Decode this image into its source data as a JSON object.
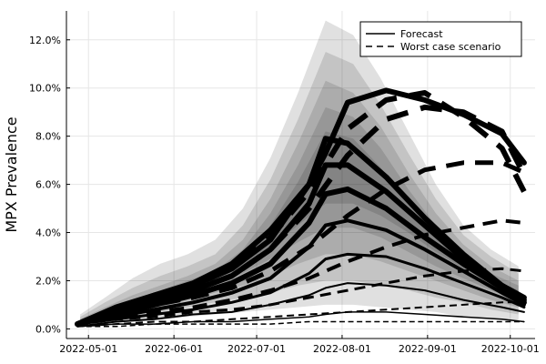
{
  "chart_data": {
    "type": "line",
    "title": "",
    "xlabel": "",
    "ylabel": "MPX Prevalence",
    "x_type": "date",
    "xlim": [
      "2022-04-23",
      "2022-10-10"
    ],
    "ylim": [
      -0.004,
      0.132
    ],
    "x_ticks": [
      "2022-05-01",
      "2022-06-01",
      "2022-07-01",
      "2022-08-01",
      "2022-09-01",
      "2022-10-01"
    ],
    "y_ticks": [
      0.0,
      0.02,
      0.04,
      0.06,
      0.08,
      0.1,
      0.12
    ],
    "y_tick_labels": [
      "0.0%",
      "2.0%",
      "4.0%",
      "6.0%",
      "8.0%",
      "10.0%",
      "12.0%"
    ],
    "grid": true,
    "legend": {
      "position": "top-right",
      "entries": [
        {
          "label": "Forecast",
          "style": "solid"
        },
        {
          "label": "Worst case scenario",
          "style": "dashed"
        }
      ]
    },
    "colors": {
      "line": "#000000",
      "band_fill": "#000000",
      "grid": "#e6e6e6",
      "axis": "#000000"
    },
    "uncertainty_bands": {
      "x": [
        "2022-04-28",
        "2022-05-07",
        "2022-05-17",
        "2022-05-27",
        "2022-06-06",
        "2022-06-16",
        "2022-06-26",
        "2022-07-06",
        "2022-07-16",
        "2022-07-26",
        "2022-08-05",
        "2022-08-15",
        "2022-08-25",
        "2022-09-04",
        "2022-09-14",
        "2022-09-24",
        "2022-10-04"
      ],
      "bands": [
        {
          "opacity": 0.12,
          "lower": [
            0.001,
            0.002,
            0.003,
            0.004,
            0.005,
            0.006,
            0.007,
            0.008,
            0.009,
            0.01,
            0.01,
            0.009,
            0.008,
            0.007,
            0.005,
            0.004,
            0.003
          ],
          "upper": [
            0.006,
            0.013,
            0.021,
            0.027,
            0.031,
            0.037,
            0.05,
            0.071,
            0.098,
            0.128,
            0.122,
            0.104,
            0.082,
            0.06,
            0.043,
            0.033,
            0.026
          ]
        },
        {
          "opacity": 0.12,
          "lower": [
            0.001,
            0.003,
            0.005,
            0.007,
            0.009,
            0.011,
            0.013,
            0.015,
            0.018,
            0.02,
            0.02,
            0.018,
            0.016,
            0.013,
            0.011,
            0.008,
            0.006
          ],
          "upper": [
            0.005,
            0.011,
            0.017,
            0.022,
            0.026,
            0.031,
            0.043,
            0.062,
            0.087,
            0.115,
            0.11,
            0.093,
            0.073,
            0.054,
            0.039,
            0.03,
            0.023
          ]
        },
        {
          "opacity": 0.12,
          "lower": [
            0.002,
            0.004,
            0.007,
            0.009,
            0.012,
            0.015,
            0.018,
            0.022,
            0.027,
            0.031,
            0.031,
            0.028,
            0.024,
            0.02,
            0.016,
            0.012,
            0.009
          ],
          "upper": [
            0.004,
            0.009,
            0.014,
            0.018,
            0.022,
            0.027,
            0.037,
            0.054,
            0.077,
            0.103,
            0.098,
            0.084,
            0.065,
            0.048,
            0.035,
            0.026,
            0.02
          ]
        },
        {
          "opacity": 0.12,
          "lower": [
            0.002,
            0.005,
            0.008,
            0.011,
            0.014,
            0.018,
            0.023,
            0.029,
            0.036,
            0.042,
            0.042,
            0.038,
            0.032,
            0.026,
            0.021,
            0.016,
            0.012
          ],
          "upper": [
            0.004,
            0.008,
            0.012,
            0.016,
            0.02,
            0.024,
            0.033,
            0.048,
            0.068,
            0.092,
            0.088,
            0.075,
            0.058,
            0.043,
            0.031,
            0.023,
            0.018
          ]
        },
        {
          "opacity": 0.12,
          "lower": [
            0.002,
            0.006,
            0.009,
            0.012,
            0.015,
            0.02,
            0.026,
            0.034,
            0.043,
            0.052,
            0.052,
            0.047,
            0.04,
            0.032,
            0.025,
            0.019,
            0.014
          ],
          "upper": [
            0.003,
            0.007,
            0.011,
            0.014,
            0.018,
            0.022,
            0.03,
            0.043,
            0.061,
            0.082,
            0.079,
            0.067,
            0.052,
            0.038,
            0.028,
            0.021,
            0.016
          ]
        }
      ]
    },
    "series": [
      {
        "name": "Forecast",
        "style": "solid",
        "width": 6,
        "x": [
          "2022-04-27",
          "2022-05-11",
          "2022-05-25",
          "2022-06-08",
          "2022-06-22",
          "2022-07-06",
          "2022-07-20",
          "2022-07-26",
          "2022-08-03",
          "2022-08-17",
          "2022-08-31",
          "2022-09-14",
          "2022-09-28",
          "2022-10-06"
        ],
        "values": [
          0.002,
          0.009,
          0.014,
          0.019,
          0.027,
          0.041,
          0.06,
          0.073,
          0.094,
          0.099,
          0.095,
          0.089,
          0.081,
          0.069
        ]
      },
      {
        "name": "Forecast",
        "style": "solid",
        "width": 6,
        "x": [
          "2022-04-27",
          "2022-05-11",
          "2022-05-25",
          "2022-06-08",
          "2022-06-22",
          "2022-07-06",
          "2022-07-20",
          "2022-07-26",
          "2022-08-03",
          "2022-08-17",
          "2022-08-31",
          "2022-09-14",
          "2022-09-28",
          "2022-10-06"
        ],
        "values": [
          0.002,
          0.008,
          0.014,
          0.018,
          0.025,
          0.037,
          0.06,
          0.079,
          0.077,
          0.063,
          0.046,
          0.031,
          0.018,
          0.013
        ]
      },
      {
        "name": "Forecast",
        "style": "solid",
        "width": 6,
        "x": [
          "2022-04-27",
          "2022-05-11",
          "2022-05-25",
          "2022-06-08",
          "2022-06-22",
          "2022-07-06",
          "2022-07-20",
          "2022-07-26",
          "2022-08-03",
          "2022-08-17",
          "2022-08-31",
          "2022-09-14",
          "2022-09-28",
          "2022-10-06"
        ],
        "values": [
          0.002,
          0.007,
          0.012,
          0.016,
          0.022,
          0.033,
          0.052,
          0.068,
          0.068,
          0.057,
          0.043,
          0.029,
          0.018,
          0.012
        ]
      },
      {
        "name": "Forecast",
        "style": "solid",
        "width": 6,
        "x": [
          "2022-04-27",
          "2022-05-11",
          "2022-05-25",
          "2022-06-08",
          "2022-06-22",
          "2022-07-06",
          "2022-07-20",
          "2022-07-26",
          "2022-08-03",
          "2022-08-17",
          "2022-08-31",
          "2022-09-14",
          "2022-09-28",
          "2022-10-06"
        ],
        "values": [
          0.002,
          0.006,
          0.01,
          0.014,
          0.019,
          0.027,
          0.044,
          0.056,
          0.058,
          0.05,
          0.038,
          0.027,
          0.017,
          0.011
        ]
      },
      {
        "name": "Forecast",
        "style": "solid",
        "width": 4,
        "x": [
          "2022-04-27",
          "2022-05-11",
          "2022-05-25",
          "2022-06-08",
          "2022-06-22",
          "2022-07-06",
          "2022-07-20",
          "2022-07-26",
          "2022-08-03",
          "2022-08-17",
          "2022-08-31",
          "2022-09-14",
          "2022-09-28",
          "2022-10-06"
        ],
        "values": [
          0.002,
          0.005,
          0.008,
          0.011,
          0.015,
          0.021,
          0.034,
          0.043,
          0.045,
          0.041,
          0.033,
          0.024,
          0.015,
          0.01
        ]
      },
      {
        "name": "Forecast",
        "style": "solid",
        "width": 3,
        "x": [
          "2022-04-27",
          "2022-05-11",
          "2022-05-25",
          "2022-06-08",
          "2022-06-22",
          "2022-07-06",
          "2022-07-20",
          "2022-07-26",
          "2022-08-03",
          "2022-08-17",
          "2022-08-31",
          "2022-09-14",
          "2022-09-28",
          "2022-10-06"
        ],
        "values": [
          0.002,
          0.004,
          0.006,
          0.008,
          0.011,
          0.015,
          0.023,
          0.029,
          0.031,
          0.03,
          0.025,
          0.019,
          0.013,
          0.009
        ]
      },
      {
        "name": "Forecast",
        "style": "solid",
        "width": 2,
        "x": [
          "2022-04-27",
          "2022-05-11",
          "2022-05-25",
          "2022-06-08",
          "2022-06-22",
          "2022-07-06",
          "2022-07-20",
          "2022-07-26",
          "2022-08-03",
          "2022-08-17",
          "2022-08-31",
          "2022-09-14",
          "2022-09-28",
          "2022-10-06"
        ],
        "values": [
          0.001,
          0.003,
          0.004,
          0.006,
          0.007,
          0.01,
          0.014,
          0.017,
          0.019,
          0.018,
          0.016,
          0.012,
          0.009,
          0.007
        ]
      },
      {
        "name": "Forecast",
        "style": "solid",
        "width": 1.5,
        "x": [
          "2022-04-27",
          "2022-05-11",
          "2022-05-25",
          "2022-06-08",
          "2022-06-22",
          "2022-07-06",
          "2022-07-20",
          "2022-07-26",
          "2022-08-03",
          "2022-08-17",
          "2022-08-31",
          "2022-09-14",
          "2022-09-28",
          "2022-10-06"
        ],
        "values": [
          0.001,
          0.002,
          0.002,
          0.003,
          0.003,
          0.004,
          0.005,
          0.006,
          0.007,
          0.007,
          0.006,
          0.005,
          0.004,
          0.003
        ]
      },
      {
        "name": "Worst case scenario",
        "style": "dashed",
        "width": 6,
        "x": [
          "2022-04-27",
          "2022-05-11",
          "2022-05-25",
          "2022-06-08",
          "2022-06-22",
          "2022-07-06",
          "2022-07-20",
          "2022-08-03",
          "2022-08-17",
          "2022-08-31",
          "2022-09-14",
          "2022-09-28",
          "2022-10-06"
        ],
        "values": [
          0.002,
          0.008,
          0.013,
          0.018,
          0.025,
          0.038,
          0.057,
          0.083,
          0.095,
          0.098,
          0.088,
          0.075,
          0.057
        ]
      },
      {
        "name": "Worst case scenario",
        "style": "dashed",
        "width": 6,
        "x": [
          "2022-04-27",
          "2022-05-11",
          "2022-05-25",
          "2022-06-08",
          "2022-06-22",
          "2022-07-06",
          "2022-07-20",
          "2022-08-03",
          "2022-08-17",
          "2022-08-31",
          "2022-09-14",
          "2022-09-28",
          "2022-10-06"
        ],
        "values": [
          0.002,
          0.007,
          0.012,
          0.016,
          0.022,
          0.033,
          0.05,
          0.072,
          0.087,
          0.092,
          0.09,
          0.082,
          0.064
        ]
      },
      {
        "name": "Worst case scenario",
        "style": "dashed",
        "width": 5,
        "x": [
          "2022-04-27",
          "2022-05-11",
          "2022-05-25",
          "2022-06-08",
          "2022-06-22",
          "2022-07-06",
          "2022-07-20",
          "2022-08-03",
          "2022-08-17",
          "2022-08-31",
          "2022-09-14",
          "2022-09-28",
          "2022-10-06"
        ],
        "values": [
          0.002,
          0.006,
          0.01,
          0.013,
          0.017,
          0.024,
          0.034,
          0.047,
          0.058,
          0.066,
          0.069,
          0.069,
          0.065
        ]
      },
      {
        "name": "Worst case scenario",
        "style": "dashed",
        "width": 4,
        "x": [
          "2022-04-27",
          "2022-05-11",
          "2022-05-25",
          "2022-06-08",
          "2022-06-22",
          "2022-07-06",
          "2022-07-20",
          "2022-08-03",
          "2022-08-17",
          "2022-08-31",
          "2022-09-14",
          "2022-09-28",
          "2022-10-06"
        ],
        "values": [
          0.002,
          0.005,
          0.007,
          0.009,
          0.012,
          0.016,
          0.021,
          0.028,
          0.034,
          0.039,
          0.042,
          0.045,
          0.044
        ]
      },
      {
        "name": "Worst case scenario",
        "style": "dashed",
        "width": 3,
        "x": [
          "2022-04-27",
          "2022-05-11",
          "2022-05-25",
          "2022-06-08",
          "2022-06-22",
          "2022-07-06",
          "2022-07-20",
          "2022-08-03",
          "2022-08-17",
          "2022-08-31",
          "2022-09-14",
          "2022-09-28",
          "2022-10-06"
        ],
        "values": [
          0.002,
          0.004,
          0.005,
          0.007,
          0.008,
          0.01,
          0.013,
          0.016,
          0.019,
          0.022,
          0.024,
          0.025,
          0.024
        ]
      },
      {
        "name": "Worst case scenario",
        "style": "dashed",
        "width": 2,
        "x": [
          "2022-04-27",
          "2022-05-11",
          "2022-05-25",
          "2022-06-08",
          "2022-06-22",
          "2022-07-06",
          "2022-07-20",
          "2022-08-03",
          "2022-08-17",
          "2022-08-31",
          "2022-09-14",
          "2022-09-28",
          "2022-10-06"
        ],
        "values": [
          0.001,
          0.002,
          0.003,
          0.003,
          0.004,
          0.005,
          0.006,
          0.007,
          0.008,
          0.009,
          0.01,
          0.011,
          0.011
        ]
      },
      {
        "name": "Worst case scenario",
        "style": "dashed",
        "width": 1.5,
        "x": [
          "2022-04-27",
          "2022-05-11",
          "2022-05-25",
          "2022-06-08",
          "2022-06-22",
          "2022-07-06",
          "2022-07-20",
          "2022-08-03",
          "2022-08-17",
          "2022-08-31",
          "2022-09-14",
          "2022-09-28",
          "2022-10-06"
        ],
        "values": [
          0.001,
          0.001,
          0.002,
          0.002,
          0.002,
          0.002,
          0.003,
          0.003,
          0.003,
          0.003,
          0.003,
          0.003,
          0.003
        ]
      }
    ]
  }
}
